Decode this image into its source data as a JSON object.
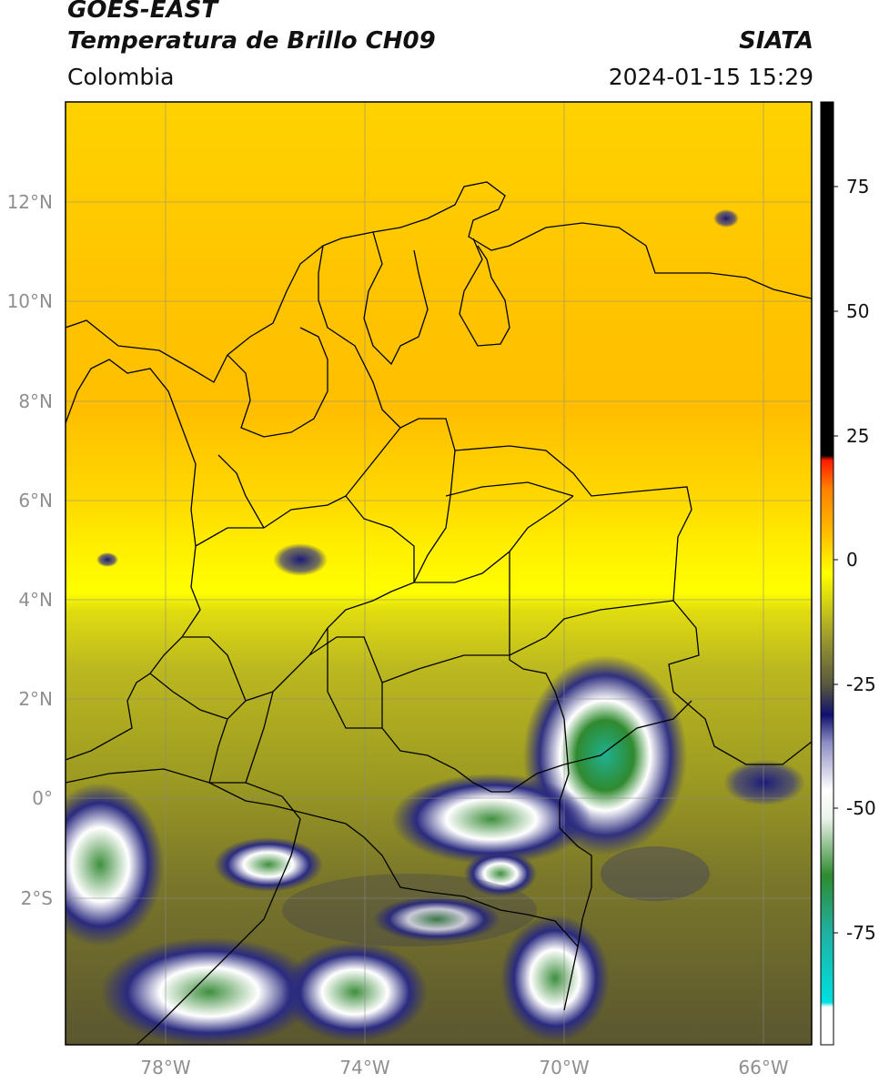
{
  "header": {
    "title_line1": "GOES-EAST",
    "title_line2": "Temperatura de Brillo CH09",
    "region": "Colombia",
    "organization": "SIATA",
    "datetime": "2024-01-15 15:29"
  },
  "map": {
    "lat_labels": [
      "12°N",
      "10°N",
      "8°N",
      "6°N",
      "4°N",
      "2°N",
      "0°",
      "2°S"
    ],
    "lon_labels": [
      "78°W",
      "74°W",
      "70°W",
      "66°W"
    ],
    "lon_range": [
      -80,
      -65
    ],
    "lat_range": [
      -5,
      14
    ]
  },
  "colorbar": {
    "ticks": [
      "75",
      "50",
      "25",
      "0",
      "-25",
      "-50",
      "-75"
    ],
    "range": [
      -95,
      90
    ],
    "colors": {
      "warm_black": "#000000",
      "red": "#ff1a00",
      "orange": "#ff9c00",
      "yellow": "#ffff00",
      "olive": "#8c8c2a",
      "navy": "#10106e",
      "white": "#ffffff",
      "green": "#2f8a2f",
      "cyan": "#00e0e0"
    }
  }
}
